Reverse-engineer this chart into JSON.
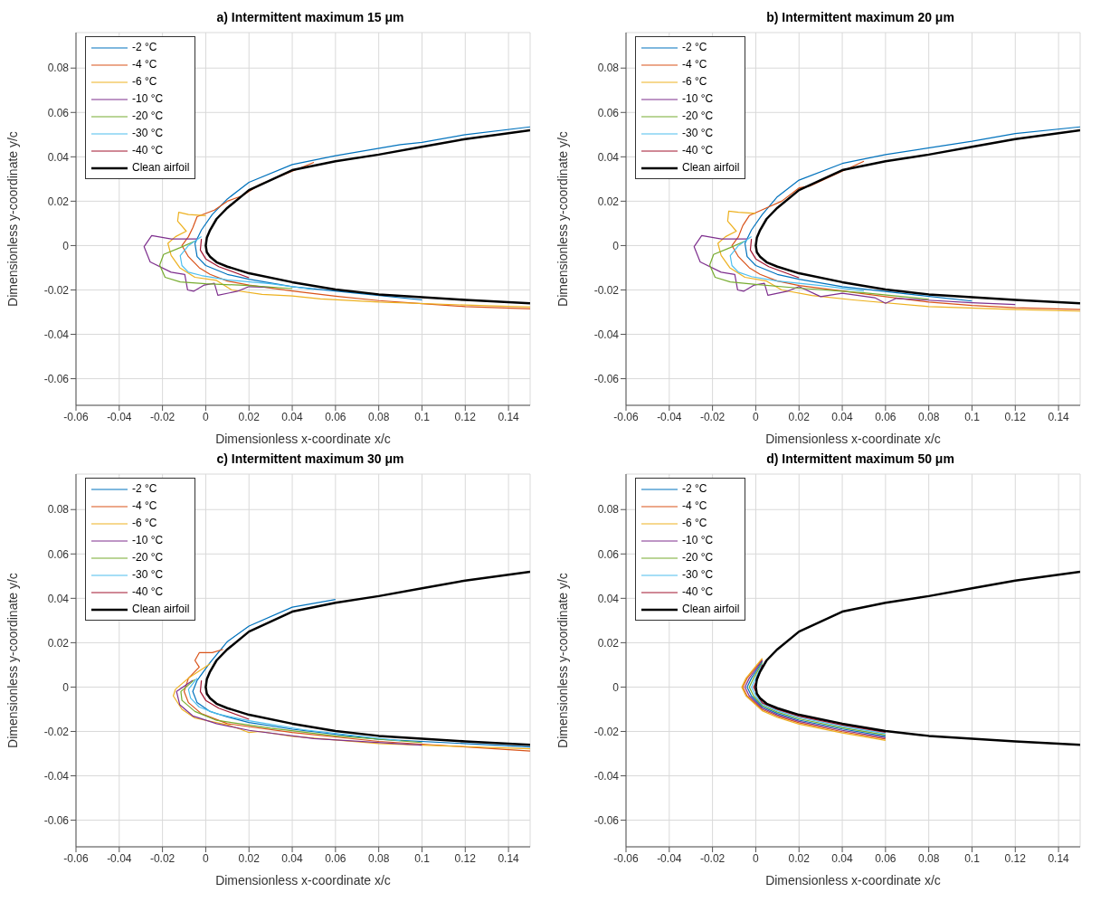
{
  "chart_data": [
    {
      "type": "line",
      "title": "a) Intermittent maximum 15 μm",
      "xlabel": "Dimensionless x-coordinate x/c",
      "ylabel": "Dimensionless y-coordinate y/c",
      "xlim": [
        -0.06,
        0.15
      ],
      "ylim": [
        -0.072,
        0.096
      ],
      "xticks": [
        -0.06,
        -0.04,
        -0.02,
        0,
        0.02,
        0.04,
        0.06,
        0.08,
        0.1,
        0.12,
        0.14
      ],
      "yticks": [
        -0.06,
        -0.04,
        -0.02,
        0,
        0.02,
        0.04,
        0.06,
        0.08
      ],
      "grid": true,
      "legend": "top left",
      "series": [
        {
          "name": "-2 °C",
          "color": "#0072bd",
          "x": [
            0.15,
            0.12,
            0.1,
            0.09,
            0.06,
            0.04,
            0.02,
            0.01,
            0.003,
            -0.002,
            -0.005,
            -0.004,
            0,
            0.01,
            0.02,
            0.04,
            0.07,
            0.1
          ],
          "values": [
            0.0535,
            0.05,
            0.0465,
            0.0455,
            0.0405,
            0.0365,
            0.0285,
            0.021,
            0.014,
            0.007,
            0.001,
            -0.005,
            -0.009,
            -0.013,
            -0.0152,
            -0.0185,
            -0.0215,
            -0.0245
          ]
        },
        {
          "name": "-4 °C",
          "color": "#d95319",
          "x": [
            0.05,
            0.025,
            0.017,
            0.01,
            0.004,
            -0.004,
            -0.006,
            -0.008,
            -0.011,
            -0.008,
            -0.003,
            0.002,
            0.01,
            0.02,
            0.04,
            0.06,
            0.08,
            0.1,
            0.12,
            0.15
          ],
          "values": [
            0.0375,
            0.0275,
            0.0225,
            0.02,
            0.016,
            0.013,
            0.008,
            0.004,
            0,
            -0.005,
            -0.01,
            -0.013,
            -0.016,
            -0.0178,
            -0.0205,
            -0.0228,
            -0.0248,
            -0.0262,
            -0.0275,
            -0.0285
          ]
        },
        {
          "name": "-6 °C",
          "color": "#edb120",
          "x": [
            0,
            -0.008,
            -0.0125,
            -0.013,
            -0.009,
            -0.014,
            -0.0175,
            -0.016,
            -0.012,
            -0.005,
            0.005,
            0.012,
            0.026,
            0.04,
            0.053,
            0.08,
            0.12,
            0.15
          ],
          "values": [
            0.0135,
            0.014,
            0.015,
            0.011,
            0.0065,
            0.004,
            0.001,
            -0.0045,
            -0.01,
            -0.0143,
            -0.0157,
            -0.02,
            -0.022,
            -0.0227,
            -0.024,
            -0.0255,
            -0.0268,
            -0.0277
          ]
        },
        {
          "name": "-10 °C",
          "color": "#7e2f8e",
          "x": [
            -0.004,
            -0.016,
            -0.025,
            -0.0285,
            -0.0257,
            -0.016,
            -0.0097,
            -0.0084,
            -0.0056,
            -0.0007,
            0.004,
            0.0056,
            0.0146,
            0.02,
            0.03
          ],
          "values": [
            0.003,
            0.003,
            0.0045,
            -0.0005,
            -0.0074,
            -0.012,
            -0.013,
            -0.02,
            -0.0206,
            -0.0178,
            -0.017,
            -0.0224,
            -0.0206,
            -0.0185,
            -0.0188
          ]
        },
        {
          "name": "-20 °C",
          "color": "#77ac30",
          "x": [
            -0.005,
            -0.012,
            -0.0195,
            -0.0213,
            -0.0188,
            -0.0118,
            0,
            0.02,
            0.04
          ],
          "values": [
            0.002,
            -0.001,
            -0.004,
            -0.0088,
            -0.0143,
            -0.0164,
            -0.0172,
            -0.018,
            -0.0194
          ]
        },
        {
          "name": "-30 °C",
          "color": "#4dbeee",
          "x": [
            -0.002,
            -0.008,
            -0.0118,
            -0.011,
            -0.008,
            -0.002,
            0.01,
            0.03,
            0.05
          ],
          "values": [
            0.004,
            0,
            -0.0046,
            -0.009,
            -0.012,
            -0.0135,
            -0.0155,
            -0.0172,
            -0.0198
          ]
        },
        {
          "name": "-40 °C",
          "color": "#a2142f",
          "x": [
            -0.002,
            -0.0025,
            0,
            0.006,
            0.02
          ],
          "values": [
            0.003,
            -0.002,
            -0.006,
            -0.0095,
            -0.0145
          ]
        },
        {
          "name": "Clean airfoil",
          "color": "#000000",
          "x": [
            0.15,
            0.12,
            0.1,
            0.08,
            0.06,
            0.04,
            0.02,
            0.01,
            0.005,
            0.002,
            0.0005,
            0,
            0.0005,
            0.002,
            0.005,
            0.01,
            0.02,
            0.04,
            0.06,
            0.08,
            0.1,
            0.12,
            0.15
          ],
          "values": [
            0.052,
            0.048,
            0.0445,
            0.041,
            0.038,
            0.034,
            0.025,
            0.017,
            0.012,
            0.007,
            0.0035,
            0,
            -0.003,
            -0.005,
            -0.0075,
            -0.0095,
            -0.0125,
            -0.0165,
            -0.0198,
            -0.022,
            -0.0233,
            -0.0245,
            -0.026
          ]
        }
      ]
    },
    {
      "type": "line",
      "title": "b) Intermittent maximum 20 μm",
      "xlabel": "Dimensionless x-coordinate x/c",
      "ylabel": "Dimensionless y-coordinate y/c",
      "xlim": [
        -0.06,
        0.15
      ],
      "ylim": [
        -0.072,
        0.096
      ],
      "xticks": [
        -0.06,
        -0.04,
        -0.02,
        0,
        0.02,
        0.04,
        0.06,
        0.08,
        0.1,
        0.12,
        0.14
      ],
      "yticks": [
        -0.06,
        -0.04,
        -0.02,
        0,
        0.02,
        0.04,
        0.06,
        0.08
      ],
      "grid": true,
      "legend": "top left",
      "series": [
        {
          "name": "-2 °C",
          "color": "#0072bd",
          "x": [
            0.15,
            0.12,
            0.1,
            0.06,
            0.04,
            0.02,
            0.01,
            0.003,
            -0.002,
            -0.005,
            -0.004,
            0,
            0.01,
            0.02,
            0.04,
            0.07,
            0.1
          ],
          "values": [
            0.0535,
            0.0505,
            0.047,
            0.041,
            0.037,
            0.0295,
            0.022,
            0.014,
            0.007,
            0.001,
            -0.005,
            -0.009,
            -0.013,
            -0.0152,
            -0.0185,
            -0.0218,
            -0.025
          ]
        },
        {
          "name": "-4 °C",
          "color": "#d95319",
          "x": [
            0.05,
            0.025,
            0.02,
            0.012,
            0.005,
            -0.003,
            -0.006,
            -0.008,
            -0.011,
            -0.008,
            -0.003,
            0.002,
            0.01,
            0.02,
            0.04,
            0.06,
            0.08,
            0.1,
            0.12,
            0.15
          ],
          "values": [
            0.038,
            0.0268,
            0.026,
            0.02,
            0.017,
            0.0135,
            0.009,
            0.004,
            0,
            -0.005,
            -0.01,
            -0.013,
            -0.016,
            -0.018,
            -0.0205,
            -0.023,
            -0.0255,
            -0.027,
            -0.028,
            -0.0288
          ]
        },
        {
          "name": "-6 °C",
          "color": "#edb120",
          "x": [
            0,
            -0.008,
            -0.0125,
            -0.013,
            -0.009,
            -0.014,
            -0.0175,
            -0.016,
            -0.012,
            -0.005,
            0.005,
            0.012,
            0.026,
            0.045,
            0.08,
            0.12,
            0.15
          ],
          "values": [
            0.0145,
            0.015,
            0.0155,
            0.011,
            0.0065,
            0.004,
            0.001,
            -0.0045,
            -0.01,
            -0.0143,
            -0.016,
            -0.02,
            -0.0225,
            -0.0245,
            -0.0275,
            -0.0288,
            -0.0296
          ]
        },
        {
          "name": "-10 °C",
          "color": "#7e2f8e",
          "x": [
            -0.004,
            -0.016,
            -0.025,
            -0.0285,
            -0.0257,
            -0.016,
            -0.0097,
            -0.0084,
            -0.0056,
            -0.0007,
            0.004,
            0.0056,
            0.0146,
            0.02,
            0.03,
            0.04,
            0.055,
            0.06,
            0.065,
            0.1,
            0.12
          ],
          "values": [
            0.003,
            0.003,
            0.0045,
            -0.0005,
            -0.0074,
            -0.012,
            -0.013,
            -0.02,
            -0.0206,
            -0.0178,
            -0.017,
            -0.0224,
            -0.0206,
            -0.0185,
            -0.023,
            -0.0215,
            -0.0235,
            -0.026,
            -0.0238,
            -0.0258,
            -0.0266
          ]
        },
        {
          "name": "-20 °C",
          "color": "#77ac30",
          "x": [
            -0.005,
            -0.012,
            -0.0195,
            -0.0213,
            -0.0188,
            -0.0118,
            0,
            0.02,
            0.05,
            0.08
          ],
          "values": [
            0.002,
            -0.001,
            -0.004,
            -0.0088,
            -0.0143,
            -0.0164,
            -0.0175,
            -0.0192,
            -0.0213,
            -0.0242
          ]
        },
        {
          "name": "-30 °C",
          "color": "#4dbeee",
          "x": [
            -0.002,
            -0.008,
            -0.0118,
            -0.011,
            -0.008,
            -0.002,
            0.01,
            0.03,
            0.05
          ],
          "values": [
            0.004,
            0,
            -0.0046,
            -0.009,
            -0.012,
            -0.014,
            -0.016,
            -0.018,
            -0.0205
          ]
        },
        {
          "name": "-40 °C",
          "color": "#a2142f",
          "x": [
            -0.002,
            -0.0025,
            0,
            0.006,
            0.02
          ],
          "values": [
            0.003,
            -0.002,
            -0.006,
            -0.0095,
            -0.0145
          ]
        },
        {
          "name": "Clean airfoil",
          "color": "#000000",
          "x": [
            0.15,
            0.12,
            0.1,
            0.08,
            0.06,
            0.04,
            0.02,
            0.01,
            0.005,
            0.002,
            0.0005,
            0,
            0.0005,
            0.002,
            0.005,
            0.01,
            0.02,
            0.04,
            0.06,
            0.08,
            0.1,
            0.12,
            0.15
          ],
          "values": [
            0.052,
            0.048,
            0.0445,
            0.041,
            0.038,
            0.034,
            0.025,
            0.017,
            0.012,
            0.007,
            0.0035,
            0,
            -0.003,
            -0.005,
            -0.0075,
            -0.0095,
            -0.0125,
            -0.0165,
            -0.0198,
            -0.022,
            -0.0233,
            -0.0245,
            -0.026
          ]
        }
      ]
    },
    {
      "type": "line",
      "title": "c) Intermittent maximum 30 μm",
      "xlabel": "Dimensionless x-coordinate x/c",
      "ylabel": "Dimensionless y-coordinate y/c",
      "xlim": [
        -0.06,
        0.15
      ],
      "ylim": [
        -0.072,
        0.096
      ],
      "xticks": [
        -0.06,
        -0.04,
        -0.02,
        0,
        0.02,
        0.04,
        0.06,
        0.08,
        0.1,
        0.12,
        0.14
      ],
      "yticks": [
        -0.06,
        -0.04,
        -0.02,
        0,
        0.02,
        0.04,
        0.06,
        0.08
      ],
      "grid": true,
      "legend": "top left",
      "series": [
        {
          "name": "-2 °C",
          "color": "#0072bd",
          "x": [
            0.06,
            0.04,
            0.02,
            0.01,
            0.002,
            -0.004,
            -0.006,
            -0.004,
            0.002,
            0.01,
            0.02,
            0.04,
            0.08,
            0.15
          ],
          "values": [
            0.0395,
            0.036,
            0.0275,
            0.0205,
            0.011,
            0.003,
            -0.002,
            -0.007,
            -0.011,
            -0.0135,
            -0.016,
            -0.019,
            -0.0235,
            -0.027
          ]
        },
        {
          "name": "-4 °C",
          "color": "#d95319",
          "x": [
            0.008,
            0.003,
            -0.003,
            -0.005,
            -0.003,
            -0.008,
            -0.01,
            -0.008,
            -0.002,
            0.01,
            0.04,
            0.08,
            0.15
          ],
          "values": [
            0.017,
            0.0155,
            0.0155,
            0.012,
            0.009,
            0.004,
            -0.002,
            -0.007,
            -0.012,
            -0.0165,
            -0.0205,
            -0.0245,
            -0.0288
          ]
        },
        {
          "name": "-6 °C",
          "color": "#edb120",
          "x": [
            0.002,
            -0.008,
            -0.014,
            -0.015,
            -0.011,
            -0.005,
            0.01,
            0.016,
            0.02,
            0.025,
            0.04,
            0.08,
            0.15
          ],
          "values": [
            0.0105,
            0.004,
            -0.001,
            -0.004,
            -0.01,
            -0.014,
            -0.017,
            -0.019,
            -0.0205,
            -0.02,
            -0.0222,
            -0.0255,
            -0.0278
          ]
        },
        {
          "name": "-10 °C",
          "color": "#7e2f8e",
          "x": [
            -0.006,
            -0.0135,
            -0.012,
            -0.006,
            0.005,
            0.02,
            0.05,
            0.1
          ],
          "values": [
            0.003,
            -0.002,
            -0.008,
            -0.013,
            -0.0165,
            -0.0195,
            -0.0232,
            -0.0262
          ]
        },
        {
          "name": "-20 °C",
          "color": "#77ac30",
          "x": [
            -0.005,
            -0.0115,
            -0.011,
            -0.005,
            0.005,
            0.03,
            0.06,
            0.1
          ],
          "values": [
            0.0035,
            -0.002,
            -0.006,
            -0.011,
            -0.015,
            -0.0185,
            -0.022,
            -0.025
          ]
        },
        {
          "name": "-30 °C",
          "color": "#4dbeee",
          "x": [
            -0.004,
            -0.008,
            -0.007,
            -0.003,
            0.005,
            0.02,
            0.045,
            0.09
          ],
          "values": [
            0.004,
            -0.001,
            -0.005,
            -0.009,
            -0.012,
            -0.0152,
            -0.0192,
            -0.0242
          ]
        },
        {
          "name": "-40 °C",
          "color": "#a2142f",
          "x": [
            -0.002,
            -0.0025,
            0,
            0.006,
            0.02
          ],
          "values": [
            0.003,
            -0.002,
            -0.006,
            -0.0095,
            -0.0145
          ]
        },
        {
          "name": "Clean airfoil",
          "color": "#000000",
          "x": [
            0.15,
            0.12,
            0.1,
            0.08,
            0.06,
            0.04,
            0.02,
            0.01,
            0.005,
            0.002,
            0.0005,
            0,
            0.0005,
            0.002,
            0.005,
            0.01,
            0.02,
            0.04,
            0.06,
            0.08,
            0.1,
            0.12,
            0.15
          ],
          "values": [
            0.052,
            0.048,
            0.0445,
            0.041,
            0.038,
            0.034,
            0.025,
            0.017,
            0.012,
            0.007,
            0.0035,
            0,
            -0.003,
            -0.005,
            -0.0075,
            -0.0095,
            -0.0125,
            -0.0165,
            -0.0198,
            -0.022,
            -0.0233,
            -0.0245,
            -0.026
          ]
        }
      ]
    },
    {
      "type": "line",
      "title": "d) Intermittent maximum 50 μm",
      "xlabel": "Dimensionless x-coordinate x/c",
      "ylabel": "Dimensionless y-coordinate y/c",
      "xlim": [
        -0.06,
        0.15
      ],
      "ylim": [
        -0.072,
        0.096
      ],
      "xticks": [
        -0.06,
        -0.04,
        -0.02,
        0,
        0.02,
        0.04,
        0.06,
        0.08,
        0.1,
        0.12,
        0.14
      ],
      "yticks": [
        -0.06,
        -0.04,
        -0.02,
        0,
        0.02,
        0.04,
        0.06,
        0.08
      ],
      "grid": true,
      "legend": "top left",
      "series": [
        {
          "name": "-2 °C",
          "color": "#0072bd",
          "x": [
            0.003,
            -0.002,
            -0.004,
            -0.002,
            0.003,
            0.01,
            0.02,
            0.04,
            0.06
          ],
          "values": [
            0.0115,
            0.004,
            0,
            -0.004,
            -0.0089,
            -0.0119,
            -0.0149,
            -0.0189,
            -0.0222
          ]
        },
        {
          "name": "-4 °C",
          "color": "#d95319",
          "x": [
            0.003,
            -0.004,
            -0.006,
            -0.004,
            0.003,
            0.01,
            0.02,
            0.04,
            0.06
          ],
          "values": [
            0.0125,
            0.004,
            0,
            -0.004,
            -0.0101,
            -0.0131,
            -0.0161,
            -0.0201,
            -0.0234
          ]
        },
        {
          "name": "-6 °C",
          "color": "#edb120",
          "x": [
            0.003,
            -0.0045,
            -0.0065,
            -0.0045,
            0.003,
            0.01,
            0.02,
            0.04,
            0.06
          ],
          "values": [
            0.013,
            0.004,
            0,
            -0.004,
            -0.0107,
            -0.0137,
            -0.0167,
            -0.0207,
            -0.024
          ]
        },
        {
          "name": "-10 °C",
          "color": "#7e2f8e",
          "x": [
            0.003,
            -0.003,
            -0.005,
            -0.003,
            0.003,
            0.01,
            0.02,
            0.04,
            0.06
          ],
          "values": [
            0.012,
            0.004,
            0,
            -0.004,
            -0.0095,
            -0.0125,
            -0.0155,
            -0.0195,
            -0.0228
          ]
        },
        {
          "name": "-20 °C",
          "color": "#77ac30",
          "x": [
            0.003,
            -0.001,
            -0.003,
            -0.001,
            0.003,
            0.01,
            0.02,
            0.04,
            0.06
          ],
          "values": [
            0.011,
            0.004,
            0,
            -0.004,
            -0.0083,
            -0.0113,
            -0.0143,
            -0.0183,
            -0.0216
          ]
        },
        {
          "name": "-30 °C",
          "color": "#4dbeee",
          "x": [
            0.003,
            0,
            -0.002,
            0,
            0.003,
            0.01,
            0.02,
            0.04,
            0.06
          ],
          "values": [
            0.0105,
            0.004,
            0,
            -0.004,
            -0.0077,
            -0.0107,
            -0.0137,
            -0.0177,
            -0.021
          ]
        },
        {
          "name": "-40 °C",
          "color": "#a2142f",
          "x": [
            0.003,
            0.001,
            -0.001,
            0.001,
            0.003,
            0.01,
            0.02,
            0.04,
            0.06
          ],
          "values": [
            0.01,
            0.004,
            0,
            -0.004,
            -0.0071,
            -0.0101,
            -0.0131,
            -0.0171,
            -0.0204
          ]
        },
        {
          "name": "Clean airfoil",
          "color": "#000000",
          "x": [
            0.15,
            0.12,
            0.1,
            0.08,
            0.06,
            0.04,
            0.02,
            0.01,
            0.005,
            0.002,
            0.0005,
            0,
            0.0005,
            0.002,
            0.005,
            0.01,
            0.02,
            0.04,
            0.06,
            0.08,
            0.1,
            0.12,
            0.15
          ],
          "values": [
            0.052,
            0.048,
            0.0445,
            0.041,
            0.038,
            0.034,
            0.025,
            0.017,
            0.012,
            0.007,
            0.0035,
            0,
            -0.003,
            -0.005,
            -0.0075,
            -0.0095,
            -0.0125,
            -0.0165,
            -0.0198,
            -0.022,
            -0.0233,
            -0.0245,
            -0.026
          ]
        }
      ]
    }
  ]
}
